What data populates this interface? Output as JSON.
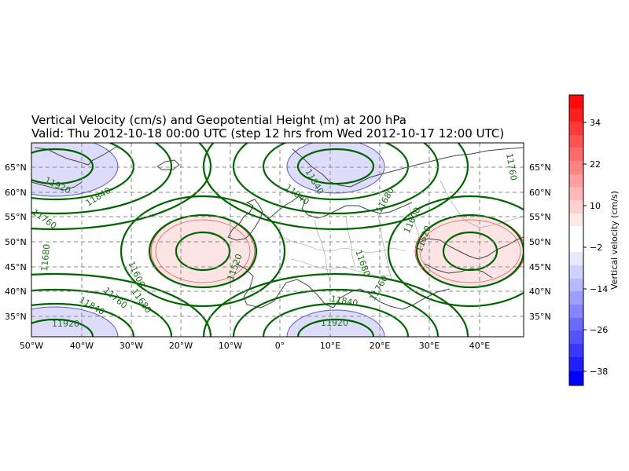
{
  "title": {
    "line1": "Vertical Velocity (cm/s) and Geopotential Height (m) at 200 hPa",
    "line2": "Valid: Thu 2012-10-18 00:00 UTC (step 12 hrs from Wed 2012-10-17 12:00 UTC)"
  },
  "map": {
    "lon_range": [
      -50,
      49
    ],
    "lat_range": [
      30.7,
      70
    ],
    "lon_ticks": [
      "50°W",
      "40°W",
      "30°W",
      "20°W",
      "10°W",
      "0°",
      "10°E",
      "20°E",
      "30°E",
      "40°E"
    ],
    "lat_ticks": [
      "35°N",
      "40°N",
      "45°N",
      "50°N",
      "55°N",
      "60°N",
      "65°N"
    ],
    "gridlines": true,
    "contour_color": "#006400",
    "contour_labels": [
      "11920",
      "11840",
      "11760",
      "11680",
      "11840",
      "11600",
      "11680",
      "11760",
      "11840",
      "11520",
      "11920",
      "11840",
      "11920",
      "11840",
      "11680",
      "11600",
      "11520",
      "11760",
      "11680",
      "11760",
      "11840",
      "11920",
      "11760"
    ]
  },
  "colorbar": {
    "label": "Vertical velocity (cm/s)",
    "ticks": [
      "34",
      "22",
      "10",
      "−2",
      "−14",
      "−26",
      "−38"
    ],
    "range": [
      -42,
      40
    ],
    "colors": {
      "positive": "#ff0000",
      "negative": "#0000ff",
      "neutral": "#ffffff"
    }
  }
}
